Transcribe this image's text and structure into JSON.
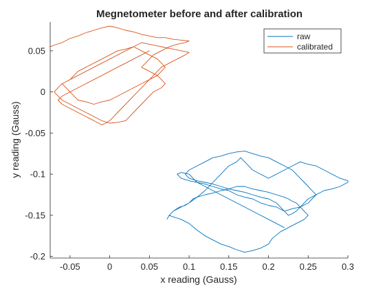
{
  "chart_data": {
    "type": "line",
    "title": "Megnetometer before and after calibration",
    "xlabel": "x reading (Gauss)",
    "ylabel": "y reading (Gauss)",
    "xlim": [
      -0.075,
      0.3
    ],
    "ylim": [
      -0.202,
      0.085
    ],
    "xticks": [
      -0.05,
      0,
      0.05,
      0.1,
      0.15,
      0.2,
      0.25,
      0.3
    ],
    "xtick_labels": [
      "-0.05",
      "0",
      "0.05",
      "0.1",
      "0.15",
      "0.2",
      "0.25",
      "0.3"
    ],
    "yticks": [
      -0.2,
      -0.15,
      -0.1,
      -0.05,
      0,
      0.05
    ],
    "ytick_labels": [
      "-0.2",
      "-0.15",
      "-0.1",
      "-0.05",
      "0",
      "0.05"
    ],
    "grid": false,
    "legend_position": "top-right",
    "series": [
      {
        "name": "raw",
        "color": "#0072BD",
        "x": [
          0.072,
          0.075,
          0.08,
          0.088,
          0.095,
          0.1,
          0.105,
          0.11,
          0.12,
          0.13,
          0.14,
          0.15,
          0.16,
          0.17,
          0.18,
          0.19,
          0.2,
          0.21,
          0.22,
          0.225,
          0.23,
          0.235,
          0.24,
          0.245,
          0.25,
          0.245,
          0.235,
          0.225,
          0.215,
          0.205,
          0.2,
          0.19,
          0.18,
          0.17,
          0.16,
          0.15,
          0.14,
          0.13,
          0.12,
          0.11,
          0.1,
          0.09,
          0.08,
          0.075,
          0.08,
          0.09,
          0.1,
          0.11,
          0.12,
          0.13,
          0.14,
          0.15,
          0.16,
          0.165,
          0.17,
          0.175,
          0.18,
          0.19,
          0.2,
          0.21,
          0.22,
          0.23,
          0.24,
          0.25,
          0.26,
          0.27,
          0.28,
          0.29,
          0.3,
          0.3,
          0.29,
          0.28,
          0.27,
          0.26,
          0.25,
          0.245,
          0.24,
          0.235,
          0.23,
          0.225,
          0.22,
          0.215,
          0.21,
          0.2,
          0.19,
          0.18,
          0.17,
          0.16,
          0.15,
          0.14,
          0.13,
          0.12,
          0.11,
          0.1,
          0.095,
          0.1,
          0.11,
          0.12,
          0.13,
          0.14,
          0.15,
          0.16,
          0.17,
          0.18,
          0.19,
          0.2,
          0.21,
          0.22,
          0.23,
          0.235,
          0.24,
          0.245,
          0.25,
          0.255,
          0.26,
          0.255,
          0.25,
          0.24,
          0.23,
          0.22,
          0.21,
          0.2,
          0.19,
          0.18,
          0.17,
          0.16,
          0.15,
          0.14,
          0.13,
          0.12,
          0.11,
          0.1,
          0.09,
          0.085,
          0.09,
          0.1,
          0.105,
          0.11,
          0.12,
          0.13,
          0.14,
          0.15,
          0.16,
          0.17,
          0.18,
          0.19,
          0.2,
          0.21,
          0.22
        ],
        "y": [
          -0.155,
          -0.15,
          -0.145,
          -0.14,
          -0.138,
          -0.135,
          -0.13,
          -0.128,
          -0.125,
          -0.123,
          -0.12,
          -0.118,
          -0.115,
          -0.115,
          -0.118,
          -0.12,
          -0.122,
          -0.125,
          -0.128,
          -0.13,
          -0.133,
          -0.135,
          -0.14,
          -0.145,
          -0.15,
          -0.155,
          -0.16,
          -0.165,
          -0.17,
          -0.178,
          -0.185,
          -0.19,
          -0.193,
          -0.195,
          -0.192,
          -0.188,
          -0.185,
          -0.18,
          -0.175,
          -0.168,
          -0.16,
          -0.155,
          -0.152,
          -0.15,
          -0.145,
          -0.14,
          -0.135,
          -0.128,
          -0.12,
          -0.11,
          -0.1,
          -0.09,
          -0.085,
          -0.08,
          -0.085,
          -0.09,
          -0.095,
          -0.1,
          -0.105,
          -0.1,
          -0.095,
          -0.09,
          -0.085,
          -0.088,
          -0.09,
          -0.095,
          -0.1,
          -0.105,
          -0.108,
          -0.11,
          -0.115,
          -0.118,
          -0.12,
          -0.125,
          -0.13,
          -0.135,
          -0.14,
          -0.145,
          -0.148,
          -0.15,
          -0.145,
          -0.14,
          -0.135,
          -0.13,
          -0.128,
          -0.125,
          -0.122,
          -0.12,
          -0.118,
          -0.115,
          -0.112,
          -0.11,
          -0.108,
          -0.105,
          -0.1,
          -0.095,
          -0.09,
          -0.085,
          -0.08,
          -0.078,
          -0.075,
          -0.073,
          -0.072,
          -0.075,
          -0.078,
          -0.08,
          -0.085,
          -0.09,
          -0.095,
          -0.1,
          -0.105,
          -0.11,
          -0.115,
          -0.12,
          -0.125,
          -0.13,
          -0.135,
          -0.14,
          -0.142,
          -0.145,
          -0.14,
          -0.138,
          -0.135,
          -0.13,
          -0.128,
          -0.125,
          -0.12,
          -0.118,
          -0.115,
          -0.112,
          -0.11,
          -0.108,
          -0.105,
          -0.1,
          -0.098,
          -0.1,
          -0.105,
          -0.11,
          -0.115,
          -0.12,
          -0.125,
          -0.13,
          -0.135,
          -0.14,
          -0.145,
          -0.15,
          -0.155,
          -0.16,
          -0.165
        ]
      },
      {
        "name": "calibrated",
        "color": "#D95319",
        "x": [
          -0.075,
          -0.07,
          -0.06,
          -0.05,
          -0.04,
          -0.03,
          -0.02,
          -0.01,
          0,
          0.01,
          0.02,
          0.03,
          0.04,
          0.05,
          0.06,
          0.07,
          0.08,
          0.09,
          0.1,
          0.095,
          0.085,
          0.075,
          0.065,
          0.055,
          0.05,
          0.045,
          0.04,
          0.05,
          0.06,
          0.065,
          0.07,
          0.065,
          0.055,
          0.05,
          0.045,
          0.04,
          0.035,
          0.03,
          0.025,
          0.02,
          0.01,
          0,
          -0.01,
          -0.02,
          -0.03,
          -0.04,
          -0.05,
          -0.06,
          -0.065,
          -0.07,
          -0.065,
          -0.06,
          -0.05,
          -0.045,
          -0.04,
          -0.03,
          -0.02,
          -0.01,
          0,
          0.01,
          0.02,
          0.03,
          0.04,
          0.05,
          0.06,
          0.065,
          0.07,
          0.065,
          0.06,
          0.05,
          0.04,
          0.03,
          0.02,
          0.01,
          0,
          -0.01,
          -0.02,
          -0.03,
          -0.04,
          -0.045,
          -0.05,
          -0.055,
          -0.06,
          -0.05,
          -0.04,
          -0.03,
          -0.02,
          -0.01,
          0,
          0.01,
          0.02,
          0.03,
          0.04,
          0.05,
          0.06,
          0.07,
          0.08,
          0.09,
          0.1,
          0.095,
          0.085,
          0.075,
          0.065,
          0.06,
          0.055,
          0.05,
          0.045,
          0.04,
          0.035,
          0.03,
          0.025,
          0.02,
          0.015,
          0.01,
          0.005,
          0,
          -0.005,
          -0.01,
          -0.02,
          -0.03,
          -0.04,
          -0.05,
          -0.06,
          -0.065,
          -0.06,
          -0.05,
          -0.04,
          -0.03,
          -0.02,
          -0.01,
          0,
          0.01,
          0.02,
          0.03,
          0.04,
          0.05
        ],
        "y": [
          0.055,
          0.057,
          0.06,
          0.065,
          0.068,
          0.072,
          0.075,
          0.078,
          0.08,
          0.078,
          0.075,
          0.073,
          0.07,
          0.068,
          0.066,
          0.066,
          0.064,
          0.063,
          0.062,
          0.06,
          0.058,
          0.055,
          0.05,
          0.045,
          0.04,
          0.035,
          0.03,
          0.025,
          0.02,
          0.015,
          0.01,
          0.005,
          0,
          -0.005,
          -0.01,
          -0.015,
          -0.02,
          -0.025,
          -0.03,
          -0.035,
          -0.037,
          -0.038,
          -0.035,
          -0.03,
          -0.025,
          -0.02,
          -0.015,
          -0.01,
          -0.005,
          0,
          0.005,
          0.01,
          0.015,
          0.02,
          0.025,
          0.03,
          0.035,
          0.04,
          0.045,
          0.05,
          0.052,
          0.055,
          0.05,
          0.045,
          0.04,
          0.035,
          0.03,
          0.025,
          0.02,
          0.015,
          0.01,
          0.005,
          0,
          -0.005,
          -0.01,
          -0.012,
          -0.015,
          -0.012,
          -0.01,
          -0.005,
          0,
          0.005,
          0.01,
          0.015,
          0.02,
          0.025,
          0.03,
          0.035,
          0.04,
          0.045,
          0.05,
          0.055,
          0.06,
          0.058,
          0.056,
          0.054,
          0.052,
          0.05,
          0.048,
          0.045,
          0.04,
          0.035,
          0.03,
          0.025,
          0.02,
          0.015,
          0.01,
          0.005,
          0,
          -0.005,
          -0.01,
          -0.015,
          -0.02,
          -0.025,
          -0.03,
          -0.035,
          -0.038,
          -0.04,
          -0.035,
          -0.03,
          -0.025,
          -0.02,
          -0.015,
          -0.01,
          -0.005,
          0,
          0.005,
          0.01,
          0.015,
          0.02,
          0.025,
          0.03,
          0.035,
          0.04,
          0.045,
          0.05
        ]
      }
    ]
  }
}
